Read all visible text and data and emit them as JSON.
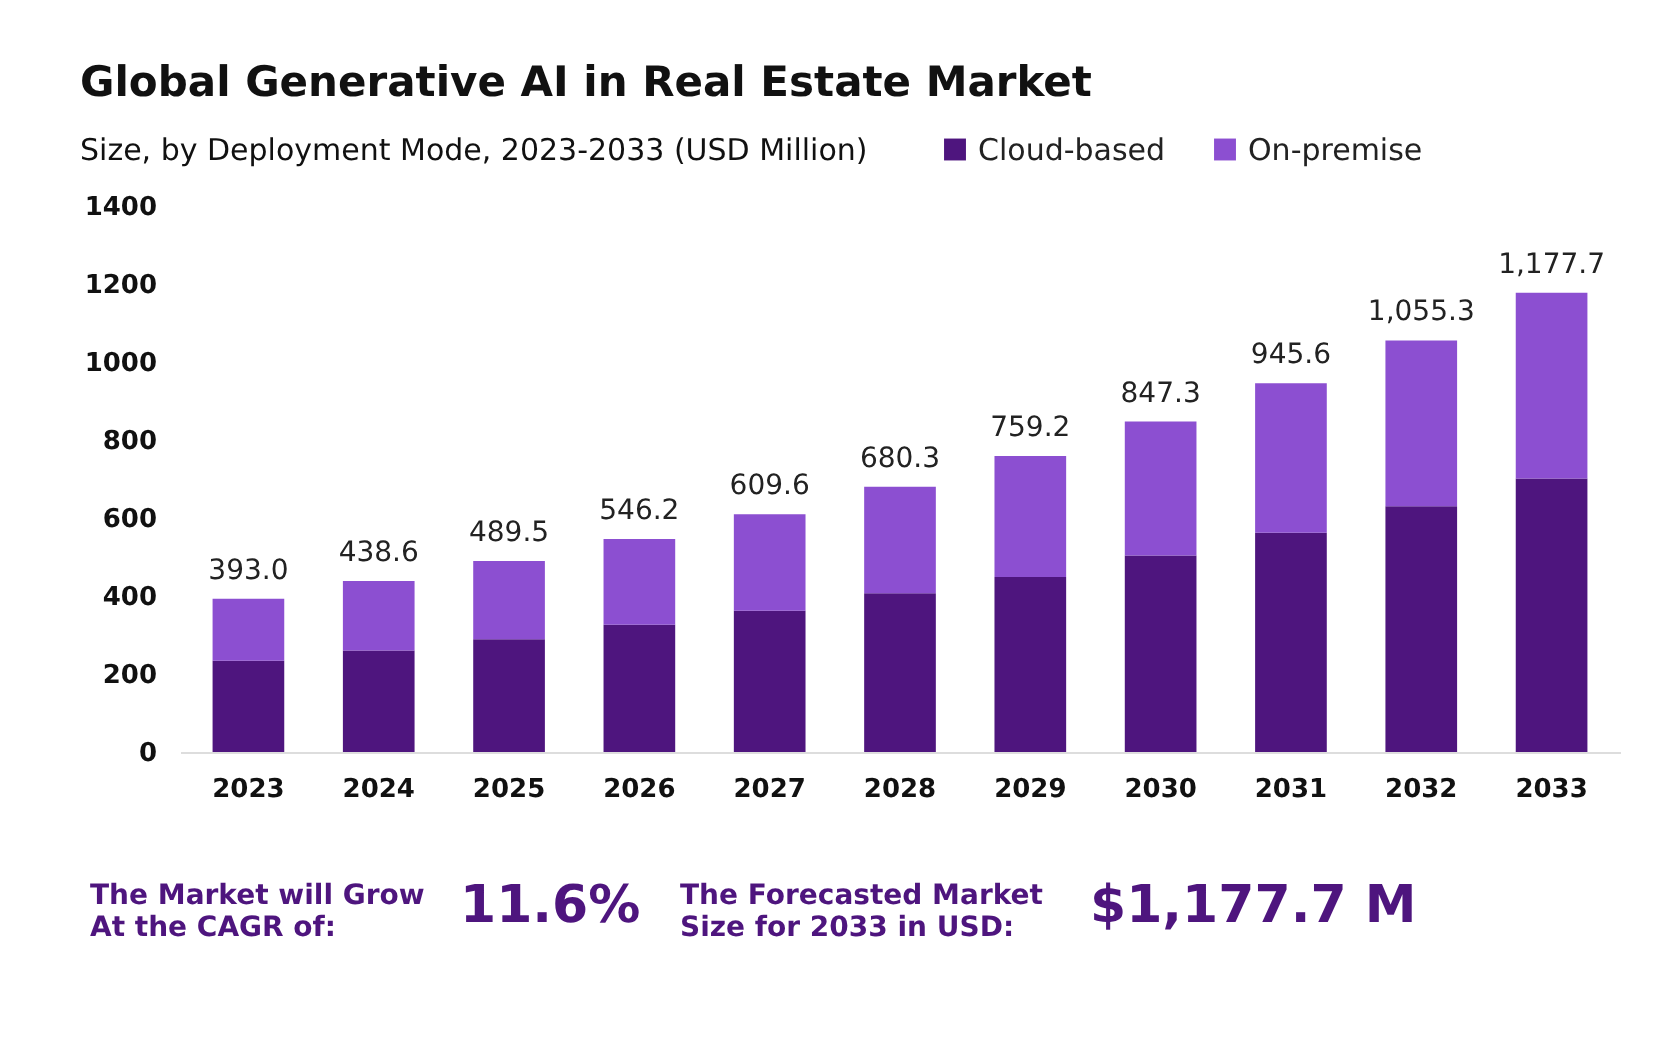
{
  "chart_data": {
    "type": "bar",
    "title": "Global Generative AI in Real Estate Market",
    "subtitle": "Size, by Deployment Mode, 2023-2033 (USD Million)",
    "categories": [
      "2023",
      "2024",
      "2025",
      "2026",
      "2027",
      "2028",
      "2029",
      "2030",
      "2031",
      "2032",
      "2033"
    ],
    "series": [
      {
        "name": "Cloud-based",
        "color": "#4e157e",
        "values": [
          234,
          260,
          289,
          326,
          362,
          407,
          449,
          504,
          562,
          630,
          701
        ]
      },
      {
        "name": "On-premise",
        "color": "#8c4fd1",
        "values": [
          159.0,
          178.6,
          200.5,
          220.2,
          247.6,
          273.3,
          310.2,
          343.3,
          383.6,
          425.3,
          476.7
        ]
      }
    ],
    "stacked": true,
    "totals": [
      "393.0",
      "438.6",
      "489.5",
      "546.2",
      "609.6",
      "680.3",
      "759.2",
      "847.3",
      "945.6",
      "1,055.3",
      "1,177.7"
    ],
    "ylim": [
      0,
      1400
    ],
    "yticks": [
      0,
      200,
      400,
      600,
      800,
      1000,
      1200,
      1400
    ],
    "grid": false,
    "legend": "top right",
    "annotations": [
      "The Market will Grow\nAt the CAGR of:",
      "11.6%",
      "The Forecasted Market\nSize for 2033 in USD:",
      "$1,177.7 M"
    ]
  }
}
